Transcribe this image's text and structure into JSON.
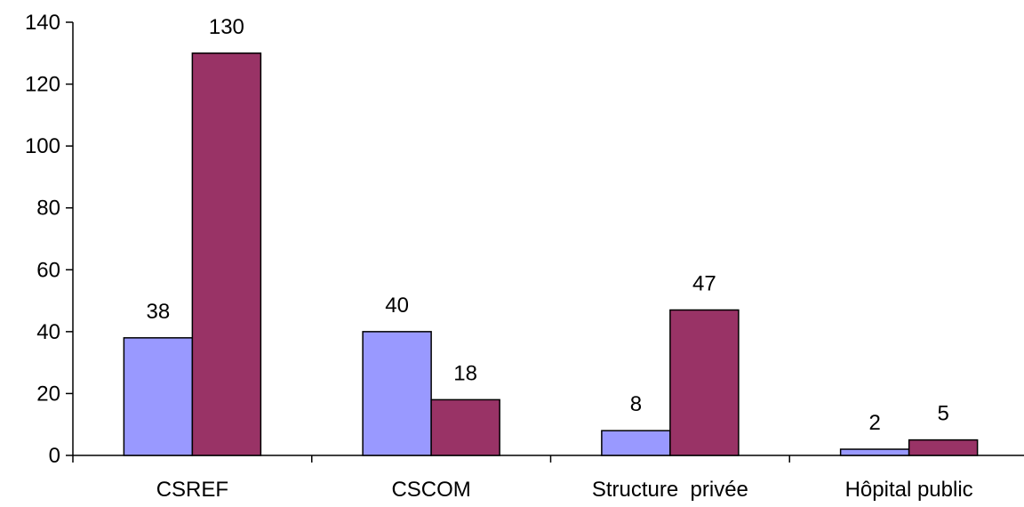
{
  "chart_data": {
    "type": "bar",
    "categories": [
      "CSREF",
      "CSCOM",
      "Structure  privée",
      "Hôpital public"
    ],
    "series": [
      {
        "values": [
          38,
          40,
          8,
          2
        ],
        "color": "#9999ff"
      },
      {
        "values": [
          130,
          18,
          47,
          5
        ],
        "color": "#993366"
      }
    ],
    "y_ticks": [
      "0",
      "20",
      "40",
      "60",
      "80",
      "100",
      "120",
      "140"
    ],
    "ylim": [
      0,
      140
    ],
    "grid": false,
    "legend": "none",
    "data_labels": true
  }
}
